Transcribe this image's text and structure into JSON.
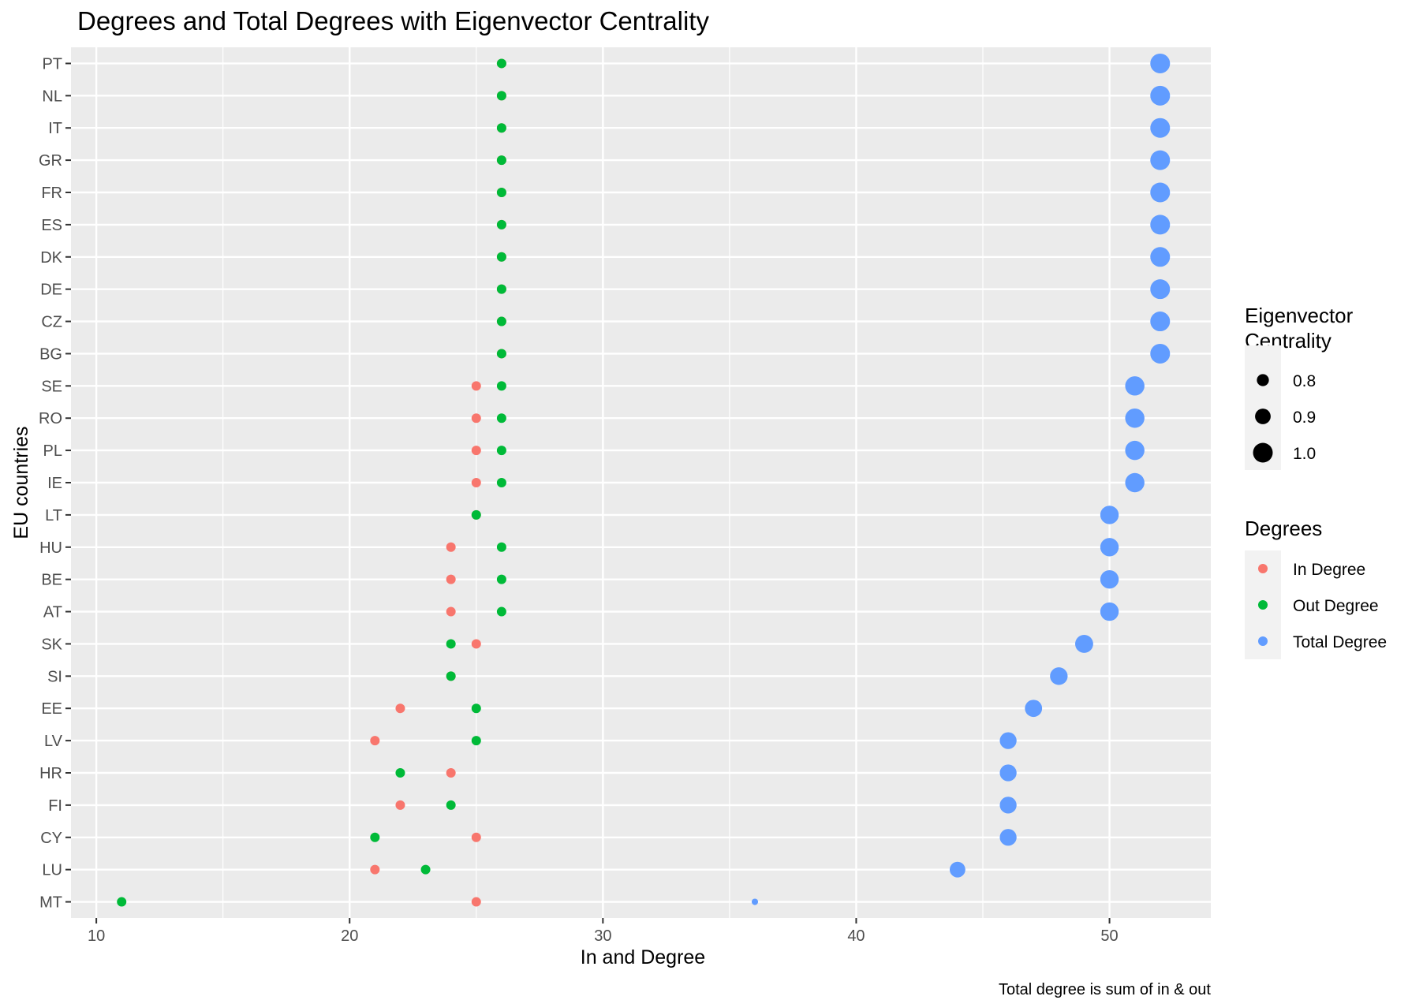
{
  "chart_data": {
    "type": "scatter",
    "title": "Degrees and Total Degrees with Eigenvector Centrality",
    "xlabel": "In and Degree",
    "ylabel": "EU countries",
    "caption": "Total degree is sum of in & out",
    "xlim": [
      9,
      54
    ],
    "x_ticks": [
      10,
      20,
      30,
      40,
      50
    ],
    "categories": [
      "MT",
      "LU",
      "CY",
      "FI",
      "HR",
      "LV",
      "EE",
      "SI",
      "SK",
      "AT",
      "BE",
      "HU",
      "LT",
      "IE",
      "PL",
      "RO",
      "SE",
      "BG",
      "CZ",
      "DE",
      "DK",
      "ES",
      "FR",
      "GR",
      "IT",
      "NL",
      "PT"
    ],
    "grid": true,
    "legend_position": "right",
    "series": [
      {
        "name": "In Degree",
        "color": "#F8766D",
        "values": [
          25,
          21,
          25,
          22,
          24,
          21,
          22,
          24,
          25,
          24,
          24,
          24,
          25,
          25,
          25,
          25,
          25,
          26,
          26,
          26,
          26,
          26,
          26,
          26,
          26,
          26,
          26
        ]
      },
      {
        "name": "Out Degree",
        "color": "#00BA38",
        "values": [
          11,
          23,
          21,
          24,
          22,
          25,
          25,
          24,
          24,
          26,
          26,
          26,
          25,
          26,
          26,
          26,
          26,
          26,
          26,
          26,
          26,
          26,
          26,
          26,
          26,
          26,
          26
        ]
      },
      {
        "name": "Total Degree",
        "color": "#619CFF",
        "values": [
          36,
          44,
          46,
          46,
          46,
          46,
          47,
          48,
          49,
          50,
          50,
          50,
          50,
          51,
          51,
          51,
          51,
          52,
          52,
          52,
          52,
          52,
          52,
          52,
          52,
          52,
          52
        ],
        "centrality": [
          0.6,
          0.9,
          0.93,
          0.93,
          0.93,
          0.93,
          0.94,
          0.95,
          0.96,
          0.97,
          0.97,
          0.97,
          0.97,
          0.99,
          0.99,
          0.99,
          0.99,
          1.0,
          1.0,
          1.0,
          1.0,
          1.0,
          1.0,
          1.0,
          1.0,
          1.0,
          1.0
        ]
      }
    ],
    "legend_size": {
      "title": "Eigenvector\nCentrality",
      "values": [
        0.8,
        0.9,
        1.0
      ],
      "labels": [
        "0.8",
        "0.9",
        "1.0"
      ]
    },
    "legend_color": {
      "title": "Degrees"
    }
  }
}
